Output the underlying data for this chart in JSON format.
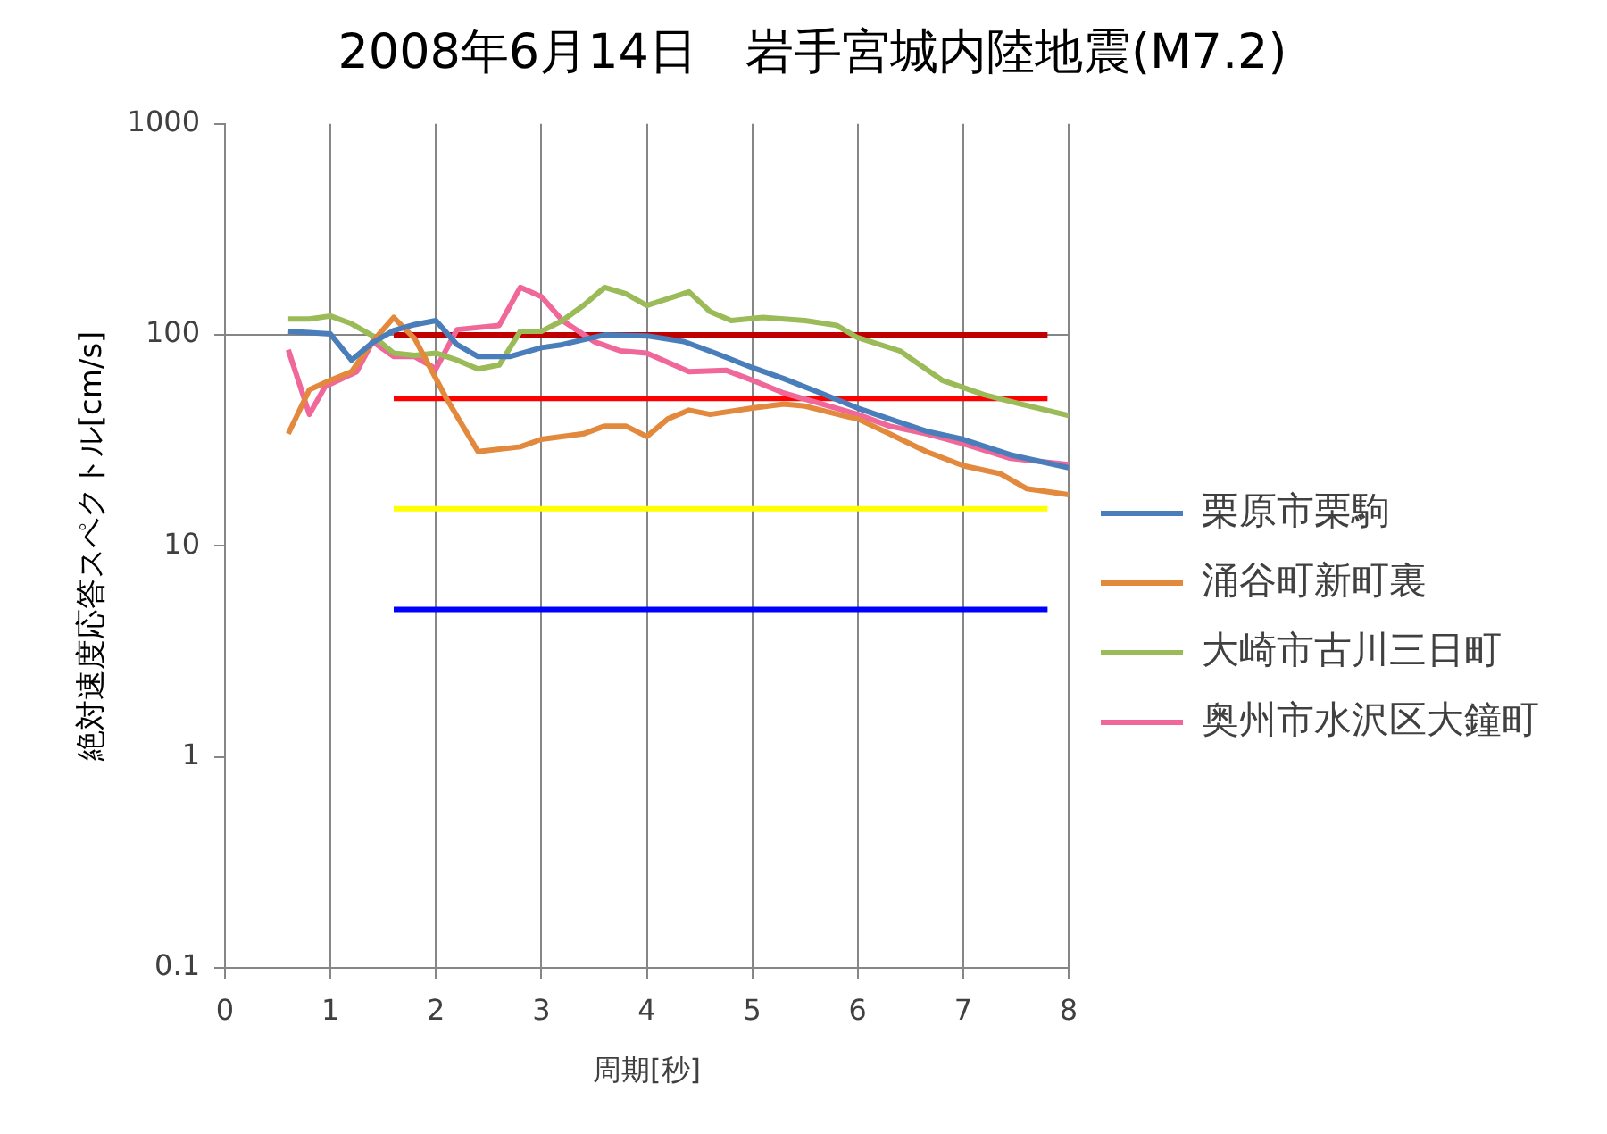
{
  "chart_data": {
    "type": "line",
    "title": "2008年6月14日　岩手宮城内陸地震(M7.2)",
    "xlabel": "周期[秒]",
    "ylabel": "絶対速度応答スペクトル[cm/s]",
    "series": [
      {
        "name": "栗原市栗駒",
        "color": "#4a7ebb",
        "x": [
          0.6,
          1.0,
          1.2,
          1.4,
          1.6,
          1.8,
          2.0,
          2.2,
          2.4,
          2.7,
          3.0,
          3.2,
          3.4,
          3.6,
          4.0,
          4.35,
          4.65,
          5.0,
          5.3,
          5.65,
          6.0,
          6.3,
          6.65,
          7.0,
          7.45,
          8.0
        ],
        "values": [
          104,
          101,
          76,
          92,
          105,
          112,
          117,
          90,
          79,
          79,
          87,
          90,
          95,
          100,
          99,
          93,
          82,
          70,
          62,
          53,
          45,
          40,
          35,
          32,
          27,
          23.5
        ]
      },
      {
        "name": "涌谷町新町裏",
        "color": "#e3893d",
        "x": [
          0.6,
          0.8,
          1.0,
          1.2,
          1.4,
          1.6,
          1.8,
          2.1,
          2.4,
          2.8,
          3.0,
          3.4,
          3.6,
          3.8,
          4.0,
          4.2,
          4.4,
          4.6,
          5.0,
          5.3,
          5.5,
          5.9,
          6.0,
          6.3,
          6.65,
          7.0,
          7.35,
          7.6,
          8.0
        ],
        "values": [
          34,
          55,
          61,
          67,
          93,
          121,
          96,
          50,
          28,
          29.5,
          32,
          34,
          37,
          37,
          33,
          40,
          44,
          42,
          45,
          47,
          46,
          41,
          40,
          34,
          28,
          24,
          22,
          18.7,
          17.5
        ]
      },
      {
        "name": "大崎市古川三日町",
        "color": "#9bbb59",
        "x": [
          0.6,
          0.8,
          1.0,
          1.2,
          1.4,
          1.6,
          1.8,
          2.0,
          2.2,
          2.4,
          2.6,
          2.8,
          3.0,
          3.2,
          3.4,
          3.6,
          3.8,
          4.0,
          4.4,
          4.6,
          4.8,
          5.1,
          5.5,
          5.8,
          6.0,
          6.4,
          6.8,
          7.2,
          7.55,
          8.0
        ],
        "values": [
          119,
          119,
          123,
          113,
          99,
          82,
          80,
          82,
          76,
          69,
          72,
          104,
          104,
          117,
          138,
          168,
          157,
          138,
          160,
          129,
          117,
          121,
          117,
          111,
          97,
          84,
          61,
          52,
          47,
          41.5
        ]
      },
      {
        "name": "奥州市水沢区大鐘町",
        "color": "#f0689a",
        "x": [
          0.6,
          0.8,
          0.95,
          1.25,
          1.4,
          1.6,
          1.8,
          2.0,
          2.2,
          2.6,
          2.8,
          3.0,
          3.2,
          3.5,
          3.75,
          4.0,
          4.4,
          4.75,
          5.0,
          5.3,
          5.6,
          6.0,
          6.3,
          6.65,
          7.0,
          7.45,
          8.0
        ],
        "values": [
          85,
          42,
          57,
          67,
          93,
          79,
          79,
          69,
          106,
          111,
          168,
          152,
          117,
          93,
          84,
          82,
          67,
          68,
          61,
          53,
          48,
          42,
          37,
          34,
          30.5,
          26,
          24.3
        ]
      },
      {
        "color": "#c00000",
        "x": [
          1.6,
          7.8
        ],
        "values": [
          100,
          100
        ]
      },
      {
        "color": "#ff0000",
        "x": [
          1.6,
          7.8
        ],
        "values": [
          50,
          50
        ]
      },
      {
        "color": "#ffff00",
        "x": [
          1.6,
          7.8
        ],
        "values": [
          15,
          15
        ]
      },
      {
        "color": "#0000ff",
        "x": [
          1.6,
          7.8
        ],
        "values": [
          5,
          5
        ]
      }
    ],
    "ref_lines": [
      {
        "axis": "y",
        "value": 100,
        "color": "#868686"
      }
    ],
    "xlim": [
      0,
      8
    ],
    "xticks": [
      0,
      1,
      2,
      3,
      4,
      5,
      6,
      7,
      8
    ],
    "ylim": [
      0.1,
      1000
    ],
    "yticks": [
      0.1,
      1,
      10,
      100,
      1000
    ],
    "log": "y",
    "grid": "x",
    "legend": "right",
    "marker": "none"
  }
}
